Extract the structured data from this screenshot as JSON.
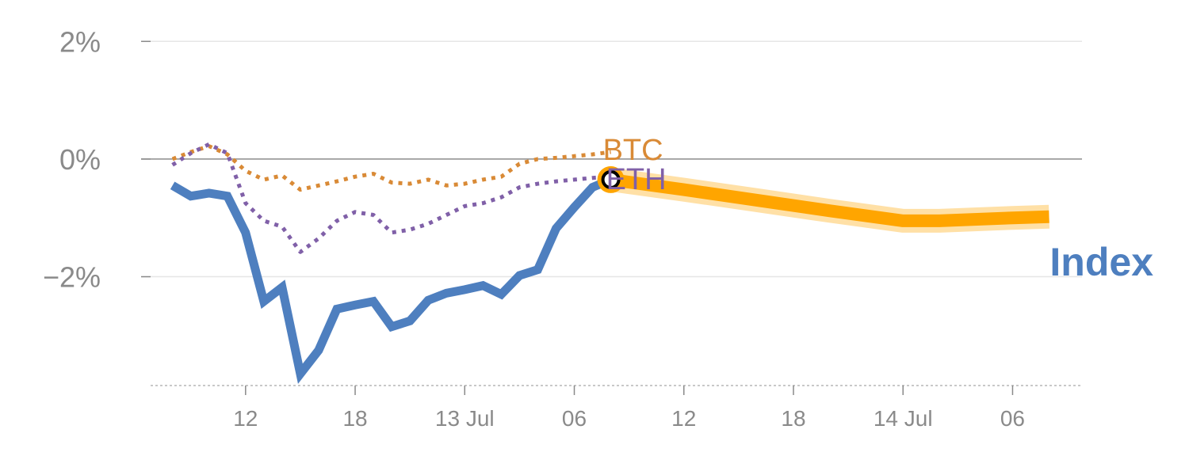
{
  "chart_data": {
    "type": "line",
    "title": "",
    "xlabel": "",
    "ylabel": "",
    "ylim": [
      -3.85,
      2.3
    ],
    "y_ticks": [
      {
        "value": 2,
        "label": "2%"
      },
      {
        "value": 0,
        "label": "0%"
      },
      {
        "value": -2,
        "label": "−2%"
      }
    ],
    "x_ticks": [
      {
        "x": 4,
        "label": "12"
      },
      {
        "x": 10,
        "label": "18"
      },
      {
        "x": 16,
        "label": "13 Jul"
      },
      {
        "x": 22,
        "label": "06"
      },
      {
        "x": 28,
        "label": "12"
      },
      {
        "x": 34,
        "label": "18"
      },
      {
        "x": 40,
        "label": "14 Jul"
      },
      {
        "x": 46,
        "label": "06"
      }
    ],
    "xlim": [
      -1.2,
      49.8
    ],
    "zero_line": true,
    "grid": true,
    "series": [
      {
        "name": "Index",
        "color": "#4e7fbf",
        "style": "solid",
        "label_position": "right",
        "x": [
          0,
          1,
          2,
          3,
          4,
          5,
          6,
          7,
          8,
          9,
          10,
          11,
          12,
          13,
          14,
          15,
          16,
          17,
          18,
          19,
          20,
          21,
          22,
          23,
          24
        ],
        "values": [
          -0.45,
          -0.63,
          -0.58,
          -0.63,
          -1.25,
          -2.42,
          -2.18,
          -3.65,
          -3.25,
          -2.55,
          -2.48,
          -2.42,
          -2.85,
          -2.75,
          -2.4,
          -2.28,
          -2.22,
          -2.15,
          -2.3,
          -1.98,
          -1.88,
          -1.18,
          -0.82,
          -0.48,
          -0.35
        ]
      },
      {
        "name": "BTC",
        "color": "#d98a36",
        "style": "dotted",
        "x": [
          0,
          1,
          2,
          3,
          4,
          5,
          6,
          7,
          8,
          9,
          10,
          11,
          12,
          13,
          14,
          15,
          16,
          17,
          18,
          19,
          20,
          21,
          22,
          23,
          24
        ],
        "values": [
          0.0,
          0.12,
          0.22,
          0.08,
          -0.2,
          -0.35,
          -0.28,
          -0.52,
          -0.45,
          -0.38,
          -0.3,
          -0.25,
          -0.4,
          -0.42,
          -0.35,
          -0.45,
          -0.42,
          -0.35,
          -0.3,
          -0.08,
          0.0,
          0.02,
          0.05,
          0.08,
          0.12
        ]
      },
      {
        "name": "ETH",
        "color": "#8060a8",
        "style": "dotted",
        "x": [
          0,
          1,
          2,
          3,
          4,
          5,
          6,
          7,
          8,
          9,
          10,
          11,
          12,
          13,
          14,
          15,
          16,
          17,
          18,
          19,
          20,
          21,
          22,
          23,
          24
        ],
        "values": [
          -0.1,
          0.1,
          0.25,
          0.1,
          -0.75,
          -1.05,
          -1.15,
          -1.58,
          -1.35,
          -1.05,
          -0.9,
          -0.95,
          -1.25,
          -1.2,
          -1.1,
          -0.95,
          -0.8,
          -0.75,
          -0.65,
          -0.48,
          -0.42,
          -0.38,
          -0.35,
          -0.32,
          -0.3
        ]
      },
      {
        "name": "",
        "color": "#ffa500",
        "style": "highlight",
        "x": [
          24,
          28,
          32,
          36,
          40,
          42,
          46,
          48
        ],
        "values": [
          -0.35,
          -0.52,
          -0.7,
          -0.88,
          -1.05,
          -1.05,
          -1.0,
          -0.98
        ]
      }
    ],
    "marker": {
      "x": 24,
      "value": -0.35,
      "color": "#ffa500"
    }
  }
}
